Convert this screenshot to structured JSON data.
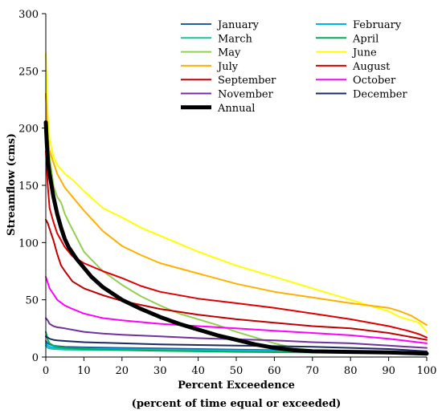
{
  "chart_data": {
    "type": "line",
    "xlabel": "Percent Exceedence",
    "xlabel2": "(percent of time equal or exceeded)",
    "ylabel": "Streamflow (cms)",
    "xlim": [
      0,
      100
    ],
    "ylim": [
      0,
      300
    ],
    "xticks": [
      0,
      10,
      20,
      30,
      40,
      50,
      60,
      70,
      80,
      90,
      100
    ],
    "yticks": [
      0,
      50,
      100,
      150,
      200,
      250,
      300
    ],
    "grid": false,
    "legend_position": "top-right",
    "series": [
      {
        "name": "January",
        "color": "#1f5fa8",
        "width": 2,
        "x": [
          0,
          0.5,
          1,
          2,
          3,
          5,
          10,
          20,
          30,
          40,
          50,
          60,
          70,
          80,
          90,
          95,
          100
        ],
        "y": [
          14,
          12,
          11,
          10,
          9.5,
          9,
          8.5,
          8,
          7.5,
          7,
          6.5,
          6,
          5.5,
          5,
          4.5,
          4,
          3
        ]
      },
      {
        "name": "February",
        "color": "#00b0f0",
        "width": 2,
        "x": [
          0,
          0.5,
          1,
          2,
          3,
          5,
          10,
          20,
          30,
          40,
          50,
          60,
          70,
          80,
          90,
          95,
          100
        ],
        "y": [
          12,
          10,
          9,
          8.5,
          8,
          7.5,
          7,
          6.8,
          6.5,
          6,
          5.8,
          5.5,
          5,
          4.5,
          4,
          3.5,
          3
        ]
      },
      {
        "name": "March",
        "color": "#19c3a0",
        "width": 2,
        "x": [
          0,
          0.5,
          1,
          2,
          3,
          5,
          10,
          20,
          30,
          40,
          50,
          60,
          70,
          80,
          90,
          95,
          100
        ],
        "y": [
          10,
          8,
          7.5,
          7,
          6.8,
          6.5,
          6.3,
          6,
          5.8,
          5.5,
          5,
          4.8,
          4.5,
          4.2,
          4,
          3.8,
          3.5
        ]
      },
      {
        "name": "April",
        "color": "#00b050",
        "width": 2,
        "x": [
          0,
          0.5,
          1,
          2,
          3,
          5,
          10,
          20,
          30,
          40,
          50,
          60,
          70,
          80,
          90,
          95,
          100
        ],
        "y": [
          22,
          15,
          12,
          10,
          9,
          8,
          7,
          6,
          5.5,
          5,
          4.5,
          4.2,
          4,
          3.8,
          3.5,
          3.2,
          3
        ]
      },
      {
        "name": "May",
        "color": "#92d050",
        "width": 2,
        "x": [
          0,
          0.5,
          1,
          2,
          3,
          4,
          5,
          6,
          8,
          10,
          12,
          15,
          20,
          25,
          30,
          35,
          40,
          45,
          50,
          55,
          60,
          65,
          70,
          80,
          90,
          95,
          100
        ],
        "y": [
          230,
          200,
          175,
          150,
          140,
          135,
          125,
          118,
          105,
          92,
          85,
          75,
          63,
          53,
          45,
          38,
          33,
          28,
          22,
          17,
          12,
          8,
          6,
          5,
          4,
          3.5,
          3
        ]
      },
      {
        "name": "June",
        "color": "#ffff00",
        "width": 2,
        "x": [
          0,
          0.5,
          1,
          2,
          3,
          5,
          7,
          10,
          15,
          20,
          25,
          30,
          40,
          50,
          60,
          70,
          80,
          85,
          90,
          93,
          96,
          98,
          100
        ],
        "y": [
          265,
          210,
          190,
          175,
          168,
          160,
          155,
          145,
          130,
          122,
          113,
          106,
          92,
          80,
          70,
          60,
          50,
          45,
          40,
          35,
          32,
          30,
          22
        ]
      },
      {
        "name": "July",
        "color": "#ffb000",
        "width": 2,
        "x": [
          0,
          0.5,
          1,
          2,
          3,
          5,
          7,
          10,
          15,
          20,
          25,
          30,
          40,
          50,
          60,
          70,
          80,
          90,
          93,
          96,
          98,
          100
        ],
        "y": [
          230,
          190,
          180,
          170,
          160,
          148,
          140,
          128,
          110,
          97,
          89,
          82,
          73,
          64,
          57,
          52,
          47,
          43,
          40,
          36,
          32,
          28
        ]
      },
      {
        "name": "August",
        "color": "#e00000",
        "width": 2,
        "x": [
          0,
          0.5,
          1,
          2,
          3,
          5,
          7,
          10,
          15,
          20,
          25,
          30,
          40,
          50,
          60,
          70,
          80,
          90,
          95,
          98,
          100
        ],
        "y": [
          180,
          150,
          130,
          118,
          108,
          96,
          88,
          82,
          75,
          69,
          62,
          57,
          51,
          47,
          43,
          38,
          33,
          27,
          23,
          20,
          17
        ]
      },
      {
        "name": "September",
        "color": "#c00000",
        "width": 2,
        "x": [
          0,
          0.5,
          1,
          2,
          3,
          4,
          5,
          7,
          10,
          15,
          20,
          30,
          40,
          50,
          60,
          70,
          80,
          90,
          95,
          100
        ],
        "y": [
          120,
          117,
          112,
          102,
          90,
          80,
          75,
          66,
          60,
          54,
          49,
          42,
          37,
          33,
          30,
          27,
          25,
          21,
          18,
          15
        ]
      },
      {
        "name": "October",
        "color": "#ff00ff",
        "width": 2,
        "x": [
          0,
          0.5,
          1,
          2,
          3,
          5,
          7,
          10,
          15,
          20,
          30,
          40,
          50,
          60,
          70,
          80,
          90,
          95,
          100
        ],
        "y": [
          70,
          65,
          60,
          55,
          50,
          45,
          42,
          38,
          34,
          32,
          29,
          27,
          25,
          23,
          21,
          19,
          16,
          14,
          12
        ]
      },
      {
        "name": "November",
        "color": "#7030a0",
        "width": 2,
        "x": [
          0,
          0.5,
          1,
          2,
          3,
          5,
          10,
          15,
          20,
          30,
          40,
          50,
          60,
          70,
          80,
          90,
          95,
          100
        ],
        "y": [
          34,
          32,
          29,
          27,
          26,
          25,
          22,
          20.5,
          19.5,
          18,
          16.5,
          15.5,
          14.5,
          13,
          12,
          10,
          9,
          8
        ]
      },
      {
        "name": "December",
        "color": "#1c2a60",
        "width": 2,
        "x": [
          0,
          0.5,
          1,
          2,
          3,
          5,
          10,
          20,
          30,
          40,
          50,
          60,
          70,
          80,
          90,
          95,
          100
        ],
        "y": [
          18,
          17,
          16,
          15,
          14.5,
          14,
          13,
          12,
          11,
          10.5,
          10,
          9.5,
          9,
          8,
          7,
          6,
          5
        ]
      },
      {
        "name": "Annual",
        "color": "#000000",
        "width": 5,
        "x": [
          0,
          0.3,
          0.6,
          1,
          1.5,
          2,
          3,
          4,
          5,
          6,
          8,
          10,
          12,
          15,
          20,
          25,
          30,
          35,
          40,
          45,
          50,
          55,
          60,
          65,
          70,
          80,
          90,
          95,
          100
        ],
        "y": [
          205,
          185,
          170,
          160,
          150,
          140,
          125,
          113,
          103,
          96,
          86,
          78,
          70,
          61,
          50,
          42,
          35,
          29,
          24,
          19,
          15,
          11,
          8,
          6,
          5,
          4.5,
          4,
          3.5,
          3
        ]
      }
    ]
  }
}
